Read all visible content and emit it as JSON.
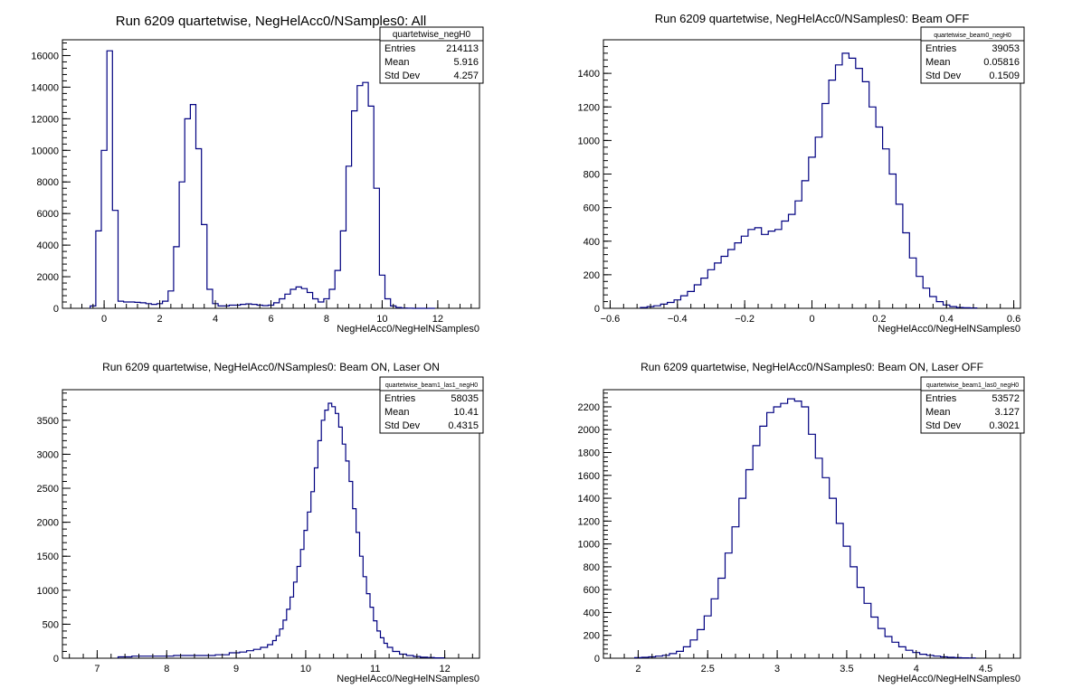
{
  "chart_data": [
    {
      "type": "histogram",
      "title": "Run 6209 quartetwise, NegHelAcc0/NSamples0: All",
      "xlabel": "NegHelAcc0/NegHelNSamples0",
      "ylabel": "",
      "xlim": [
        -1.5,
        13.5
      ],
      "ylim": [
        0,
        17000
      ],
      "xticks": [
        0,
        2,
        4,
        6,
        8,
        10,
        12
      ],
      "xtick_labels": [
        "0",
        "2",
        "4",
        "6",
        "8",
        "10",
        "12"
      ],
      "yticks": [
        0,
        2000,
        4000,
        6000,
        8000,
        10000,
        12000,
        14000,
        16000
      ],
      "ytick_labels": [
        "0",
        "2000",
        "4000",
        "6000",
        "8000",
        "10000",
        "12000",
        "14000",
        "16000"
      ],
      "line_color": "#000080",
      "stats": {
        "name": "quartetwise_negH0",
        "rows": [
          {
            "label": "Entries",
            "value": "214113"
          },
          {
            "label": "Mean",
            "value": "5.916"
          },
          {
            "label": "Std Dev",
            "value": "4.257"
          }
        ]
      },
      "x": [
        -0.4,
        -0.2,
        0.0,
        0.2,
        0.4,
        0.6,
        0.8,
        1.0,
        1.2,
        1.4,
        1.6,
        1.8,
        2.0,
        2.2,
        2.4,
        2.6,
        2.8,
        3.0,
        3.2,
        3.4,
        3.6,
        3.8,
        4.0,
        4.2,
        4.4,
        4.6,
        4.8,
        5.0,
        5.2,
        5.4,
        5.6,
        5.8,
        6.0,
        6.2,
        6.4,
        6.6,
        6.8,
        7.0,
        7.2,
        7.4,
        7.6,
        7.8,
        8.0,
        8.2,
        8.4,
        8.6,
        8.8,
        9.0,
        9.2,
        9.4,
        9.6,
        9.8,
        10.0,
        10.2,
        10.4,
        10.6,
        10.8,
        11.0,
        11.2,
        11.4,
        11.6,
        11.8
      ],
      "values": [
        150,
        4900,
        10000,
        16300,
        6200,
        450,
        400,
        400,
        380,
        350,
        300,
        250,
        300,
        450,
        1100,
        3900,
        8000,
        12000,
        12900,
        10100,
        5300,
        1200,
        300,
        150,
        150,
        200,
        200,
        250,
        280,
        250,
        200,
        170,
        200,
        350,
        600,
        900,
        1200,
        1350,
        1250,
        1000,
        600,
        400,
        600,
        1200,
        2400,
        4900,
        9000,
        12500,
        14100,
        14300,
        12800,
        7600,
        2100,
        600,
        150,
        50,
        20,
        10,
        0,
        0,
        0,
        0
      ]
    },
    {
      "type": "histogram",
      "title": "Run 6209 quartetwise, NegHelAcc0/NSamples0: Beam OFF",
      "xlabel": "NegHelAcc0/NegHelNSamples0",
      "ylabel": "",
      "xlim": [
        -0.62,
        0.62
      ],
      "ylim": [
        0,
        1600
      ],
      "xticks": [
        -0.6,
        -0.4,
        -0.2,
        0,
        0.2,
        0.4,
        0.6
      ],
      "xtick_labels": [
        "−0.6",
        "−0.4",
        "−0.2",
        "0",
        "0.2",
        "0.4",
        "0.6"
      ],
      "yticks": [
        0,
        200,
        400,
        600,
        800,
        1000,
        1200,
        1400
      ],
      "ytick_labels": [
        "0",
        "200",
        "400",
        "600",
        "800",
        "1000",
        "1200",
        "1400"
      ],
      "line_color": "#000080",
      "stats": {
        "name": "quartetwise_beam0_negH0",
        "rows": [
          {
            "label": "Entries",
            "value": "39053"
          },
          {
            "label": "Mean",
            "value": "0.05816"
          },
          {
            "label": "Std Dev",
            "value": "0.1509"
          }
        ]
      },
      "x": [
        -0.5,
        -0.48,
        -0.46,
        -0.44,
        -0.42,
        -0.4,
        -0.38,
        -0.36,
        -0.34,
        -0.32,
        -0.3,
        -0.28,
        -0.26,
        -0.24,
        -0.22,
        -0.2,
        -0.18,
        -0.16,
        -0.14,
        -0.12,
        -0.1,
        -0.08,
        -0.06,
        -0.04,
        -0.02,
        0.0,
        0.02,
        0.04,
        0.06,
        0.08,
        0.1,
        0.12,
        0.14,
        0.16,
        0.18,
        0.2,
        0.22,
        0.24,
        0.26,
        0.28,
        0.3,
        0.32,
        0.34,
        0.36,
        0.38,
        0.4,
        0.42,
        0.44,
        0.46,
        0.48
      ],
      "values": [
        5,
        10,
        15,
        25,
        35,
        50,
        75,
        100,
        140,
        180,
        230,
        270,
        310,
        350,
        390,
        430,
        470,
        480,
        440,
        460,
        470,
        520,
        560,
        640,
        760,
        900,
        1020,
        1220,
        1360,
        1450,
        1520,
        1490,
        1430,
        1350,
        1200,
        1080,
        950,
        800,
        620,
        450,
        300,
        190,
        120,
        70,
        40,
        20,
        10,
        5,
        3,
        2
      ]
    },
    {
      "type": "histogram",
      "title": "Run 6209 quartetwise, NegHelAcc0/NSamples0: Beam ON, Laser ON",
      "xlabel": "NegHelAcc0/NegHelNSamples0",
      "ylabel": "",
      "xlim": [
        6.5,
        12.5
      ],
      "ylim": [
        0,
        3950
      ],
      "xticks": [
        7,
        8,
        9,
        10,
        11,
        12
      ],
      "xtick_labels": [
        "7",
        "8",
        "9",
        "10",
        "11",
        "12"
      ],
      "yticks": [
        0,
        500,
        1000,
        1500,
        2000,
        2500,
        3000,
        3500
      ],
      "ytick_labels": [
        "0",
        "500",
        "1000",
        "1500",
        "2000",
        "2500",
        "3000",
        "3500"
      ],
      "line_color": "#000080",
      "stats": {
        "name": "quartetwise_beam1_las1_negH0",
        "rows": [
          {
            "label": "Entries",
            "value": "58035"
          },
          {
            "label": "Mean",
            "value": "10.41"
          },
          {
            "label": "Std Dev",
            "value": "0.4315"
          }
        ]
      },
      "x": [
        7.4,
        7.6,
        7.8,
        8.0,
        8.2,
        8.4,
        8.6,
        8.8,
        9.0,
        9.1,
        9.2,
        9.3,
        9.4,
        9.5,
        9.55,
        9.6,
        9.65,
        9.7,
        9.75,
        9.8,
        9.85,
        9.9,
        9.95,
        10.0,
        10.05,
        10.1,
        10.15,
        10.2,
        10.25,
        10.3,
        10.35,
        10.4,
        10.45,
        10.5,
        10.55,
        10.6,
        10.65,
        10.7,
        10.75,
        10.8,
        10.85,
        10.9,
        10.95,
        11.0,
        11.05,
        11.1,
        11.15,
        11.2,
        11.3,
        11.4,
        11.5,
        11.6,
        11.7,
        11.8,
        11.9
      ],
      "values": [
        20,
        30,
        30,
        30,
        40,
        40,
        40,
        50,
        80,
        90,
        110,
        130,
        160,
        200,
        260,
        330,
        430,
        560,
        720,
        900,
        1120,
        1350,
        1600,
        1880,
        2150,
        2450,
        2800,
        3200,
        3500,
        3650,
        3750,
        3700,
        3600,
        3400,
        3150,
        2900,
        2600,
        2200,
        1850,
        1500,
        1200,
        950,
        750,
        550,
        400,
        300,
        220,
        160,
        100,
        60,
        40,
        25,
        15,
        10,
        5
      ]
    },
    {
      "type": "histogram",
      "title": "Run 6209 quartetwise, NegHelAcc0/NSamples0: Beam ON, Laser OFF",
      "xlabel": "NegHelAcc0/NegHelNSamples0",
      "ylabel": "",
      "xlim": [
        1.75,
        4.75
      ],
      "ylim": [
        0,
        2350
      ],
      "xticks": [
        2,
        2.5,
        3,
        3.5,
        4,
        4.5
      ],
      "xtick_labels": [
        "2",
        "2.5",
        "3",
        "3.5",
        "4",
        "4.5"
      ],
      "yticks": [
        0,
        200,
        400,
        600,
        800,
        1000,
        1200,
        1400,
        1600,
        1800,
        2000,
        2200
      ],
      "ytick_labels": [
        "0",
        "200",
        "400",
        "600",
        "800",
        "1000",
        "1200",
        "1400",
        "1600",
        "1800",
        "2000",
        "2200"
      ],
      "line_color": "#000080",
      "stats": {
        "name": "quartetwise_beam1_las0_negH0",
        "rows": [
          {
            "label": "Entries",
            "value": "53572"
          },
          {
            "label": "Mean",
            "value": "3.127"
          },
          {
            "label": "Std Dev",
            "value": "0.3021"
          }
        ]
      },
      "x": [
        2.0,
        2.05,
        2.1,
        2.15,
        2.2,
        2.25,
        2.3,
        2.35,
        2.4,
        2.45,
        2.5,
        2.55,
        2.6,
        2.65,
        2.7,
        2.75,
        2.8,
        2.85,
        2.9,
        2.95,
        3.0,
        3.05,
        3.1,
        3.15,
        3.2,
        3.25,
        3.3,
        3.35,
        3.4,
        3.45,
        3.5,
        3.55,
        3.6,
        3.65,
        3.7,
        3.75,
        3.8,
        3.85,
        3.9,
        3.95,
        4.0,
        4.05,
        4.1,
        4.15,
        4.2,
        4.25,
        4.3,
        4.35,
        4.4
      ],
      "values": [
        5,
        8,
        12,
        18,
        25,
        40,
        60,
        100,
        160,
        250,
        370,
        520,
        700,
        920,
        1150,
        1400,
        1650,
        1860,
        2030,
        2150,
        2200,
        2230,
        2270,
        2250,
        2200,
        1960,
        1750,
        1580,
        1400,
        1180,
        980,
        800,
        620,
        480,
        360,
        260,
        190,
        140,
        100,
        70,
        50,
        35,
        25,
        18,
        12,
        8,
        5,
        3,
        2
      ]
    }
  ]
}
